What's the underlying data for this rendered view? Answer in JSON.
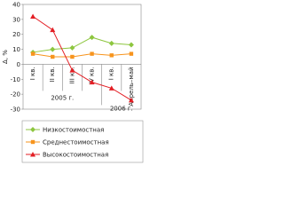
{
  "chart_data": {
    "type": "line",
    "y_label": "Δ, %",
    "categories": [
      "I кв.",
      "II кв.",
      "III кв.",
      "IV кв.",
      "I кв.",
      "Апрель–май"
    ],
    "group_labels": [
      "2005 г.",
      "2006 г."
    ],
    "series": [
      {
        "name": "Низкостоимостная",
        "color": "#8dc63f",
        "marker": "diamond",
        "values": [
          8,
          10,
          11,
          18,
          14,
          13
        ]
      },
      {
        "name": "Среднестоимостная",
        "color": "#f7941d",
        "marker": "square",
        "values": [
          7,
          5,
          5,
          7,
          6,
          7
        ]
      },
      {
        "name": "Высокостоимостная",
        "color": "#e31e24",
        "marker": "triangle",
        "values": [
          32,
          23,
          -4,
          -12,
          -16,
          -24
        ]
      }
    ],
    "ylim": [
      -30,
      40
    ],
    "yticks": [
      -30,
      -20,
      -10,
      0,
      10,
      20,
      30,
      40
    ],
    "grid": false
  }
}
